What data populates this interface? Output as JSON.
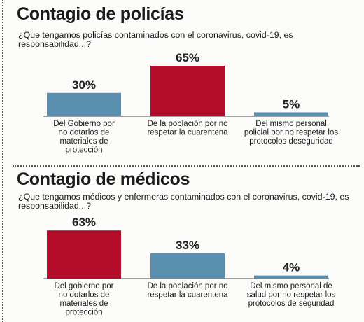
{
  "sections": [
    {
      "title": "Contagio de policías",
      "question": "¿Que tengamos policías contaminados con el coronavirus, covid-19, es responsabilidad...?"
    },
    {
      "title": "Contagio de médicos",
      "question": "¿Que tengamos médicos y enfermeras contaminados con el coronavirus, covid-19, es responsabilidad...?"
    }
  ],
  "colors": {
    "blue": "#5b8fb0",
    "red": "#b30d2a",
    "axis": "#444444"
  },
  "chart_data": [
    {
      "type": "bar",
      "categories": [
        "Del Gobierno por no dotarlos de materiales de protección",
        "De la población por no respetar la cuarentena",
        "Del mismo personal policial por no respetar los protocolos deseguridad"
      ],
      "category_lines": [
        [
          "Del Gobierno por",
          "no dotarlos de",
          "materiales de",
          "protección"
        ],
        [
          "De la población por no",
          "respetar la cuarentena"
        ],
        [
          "Del mismo personal",
          "policial por no respetar los",
          "protocolos deseguridad"
        ]
      ],
      "values": [
        30,
        65,
        5
      ],
      "labels": [
        "30%",
        "65%",
        "5%"
      ],
      "bar_colors": [
        "#5b8fb0",
        "#b30d2a",
        "#5b8fb0"
      ],
      "ylim": [
        0,
        65
      ]
    },
    {
      "type": "bar",
      "categories": [
        "Del gobierno por no dotarlos de materiales de protección",
        "De la población por no respetar la cuarentena",
        "Del mismo personal de salud por no respetar los protocolos de seguridad"
      ],
      "category_lines": [
        [
          "Del gobierno por",
          "no dotarlos de",
          "materiales de",
          "protección"
        ],
        [
          "De la población por no",
          "respetar la cuarentena"
        ],
        [
          "Del mismo personal de",
          "salud por no respetar los",
          "protocolos de seguridad"
        ]
      ],
      "values": [
        63,
        33,
        4
      ],
      "labels": [
        "63%",
        "33%",
        "4%"
      ],
      "bar_colors": [
        "#b30d2a",
        "#5b8fb0",
        "#5b8fb0"
      ],
      "ylim": [
        0,
        65
      ]
    }
  ]
}
